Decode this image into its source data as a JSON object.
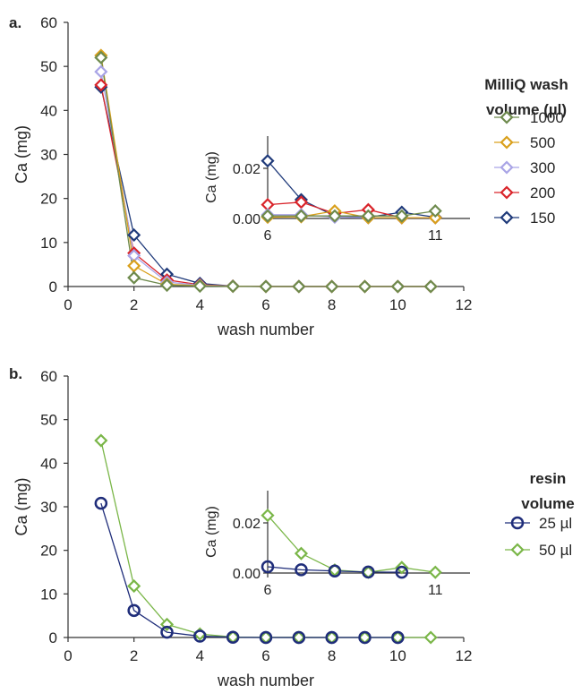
{
  "panel_labels": [
    "a.",
    "b."
  ],
  "legend_titles": [
    [
      "MilliQ wash",
      "volume (µl)"
    ],
    [
      "resin",
      "volume"
    ]
  ],
  "chart_data": [
    {
      "type": "line",
      "panel": "a.",
      "xlabel": "wash number",
      "ylabel": "Ca (mg)",
      "xlim": [
        0,
        12
      ],
      "ylim": [
        0,
        60
      ],
      "xticks": [
        0,
        2,
        4,
        6,
        8,
        10,
        12
      ],
      "yticks": [
        0,
        10,
        20,
        30,
        40,
        50,
        60
      ],
      "legend_title": "MilliQ wash volume (µl)",
      "legend_position": "right",
      "series": [
        {
          "name": "1000",
          "color": "#6e8a4d",
          "marker": "diamond",
          "x": [
            1,
            2,
            3,
            4,
            5,
            6,
            7,
            8,
            9,
            10,
            11
          ],
          "y": [
            52,
            2,
            0.3,
            0.1,
            0.05,
            0.001,
            0.001,
            0.001,
            0.001,
            0.001,
            0.003
          ]
        },
        {
          "name": "500",
          "color": "#d9a01c",
          "marker": "diamond",
          "x": [
            1,
            2,
            3,
            4,
            5,
            6,
            7,
            8,
            9,
            10,
            11
          ],
          "y": [
            52.5,
            4.7,
            0.5,
            0.2,
            0.05,
            0.0005,
            0.0007,
            0.003,
            0.0003,
            0.0003,
            0.0003
          ]
        },
        {
          "name": "300",
          "color": "#a9a4e6",
          "marker": "diamond",
          "x": [
            1,
            2,
            3,
            4,
            5,
            6,
            7,
            8,
            9,
            10,
            11
          ],
          "y": [
            48.8,
            7,
            1,
            0.3,
            0.05,
            0.0015,
            0.0015,
            0.0005,
            0.0003,
            0.0003,
            0.0003
          ]
        },
        {
          "name": "200",
          "color": "#d9242a",
          "marker": "diamond",
          "x": [
            1,
            2,
            3,
            4,
            5,
            6,
            7,
            8,
            9,
            10,
            11
          ],
          "y": [
            45.8,
            7.6,
            1.5,
            0.4,
            0.08,
            0.0055,
            0.0065,
            0.002,
            0.0035,
            0.0003,
            0.0003
          ]
        },
        {
          "name": "150",
          "color": "#1f3a7a",
          "marker": "diamond",
          "x": [
            1,
            2,
            3,
            4,
            5,
            6,
            7,
            8,
            9,
            10,
            11
          ],
          "y": [
            45.3,
            11.7,
            2.8,
            0.7,
            0.1,
            0.023,
            0.0075,
            0.001,
            0.0005,
            0.0025,
            0.0005
          ]
        }
      ],
      "inset": {
        "ylabel": "Ca (mg)",
        "xlim": [
          6,
          11.5
        ],
        "ylim": [
          0,
          0.03
        ],
        "xticks": [
          6,
          11
        ],
        "yticks": [
          0,
          0.02
        ],
        "ytick_labels": [
          "0.00",
          "0.02"
        ]
      }
    },
    {
      "type": "line",
      "panel": "b.",
      "xlabel": "wash number",
      "ylabel": "Ca (mg)",
      "xlim": [
        0,
        12
      ],
      "ylim": [
        0,
        60
      ],
      "xticks": [
        0,
        2,
        4,
        6,
        8,
        10,
        12
      ],
      "yticks": [
        0,
        10,
        20,
        30,
        40,
        50,
        60
      ],
      "legend_title": "resin volume",
      "legend_position": "right",
      "series": [
        {
          "name": "25 µl",
          "color": "#1f2d7a",
          "marker": "circle",
          "x": [
            1,
            2,
            3,
            4,
            5,
            6,
            7,
            8,
            9,
            10
          ],
          "y": [
            30.8,
            6.2,
            1.2,
            0.3,
            0.05,
            0.0025,
            0.0013,
            0.0008,
            0.0004,
            0.0003
          ]
        },
        {
          "name": "50 µl",
          "color": "#7ab648",
          "marker": "diamond",
          "x": [
            1,
            2,
            3,
            4,
            5,
            6,
            7,
            8,
            9,
            10,
            11
          ],
          "y": [
            45.2,
            11.8,
            3,
            0.8,
            0.1,
            0.023,
            0.0078,
            0.0012,
            0.0003,
            0.0022,
            0.0003
          ]
        }
      ],
      "inset": {
        "ylabel": "Ca (mg)",
        "xlim": [
          6,
          11.5
        ],
        "ylim": [
          0,
          0.03
        ],
        "xticks": [
          6,
          11
        ],
        "yticks": [
          0,
          0.02
        ],
        "ytick_labels": [
          "0.00",
          "0.02"
        ]
      }
    }
  ]
}
